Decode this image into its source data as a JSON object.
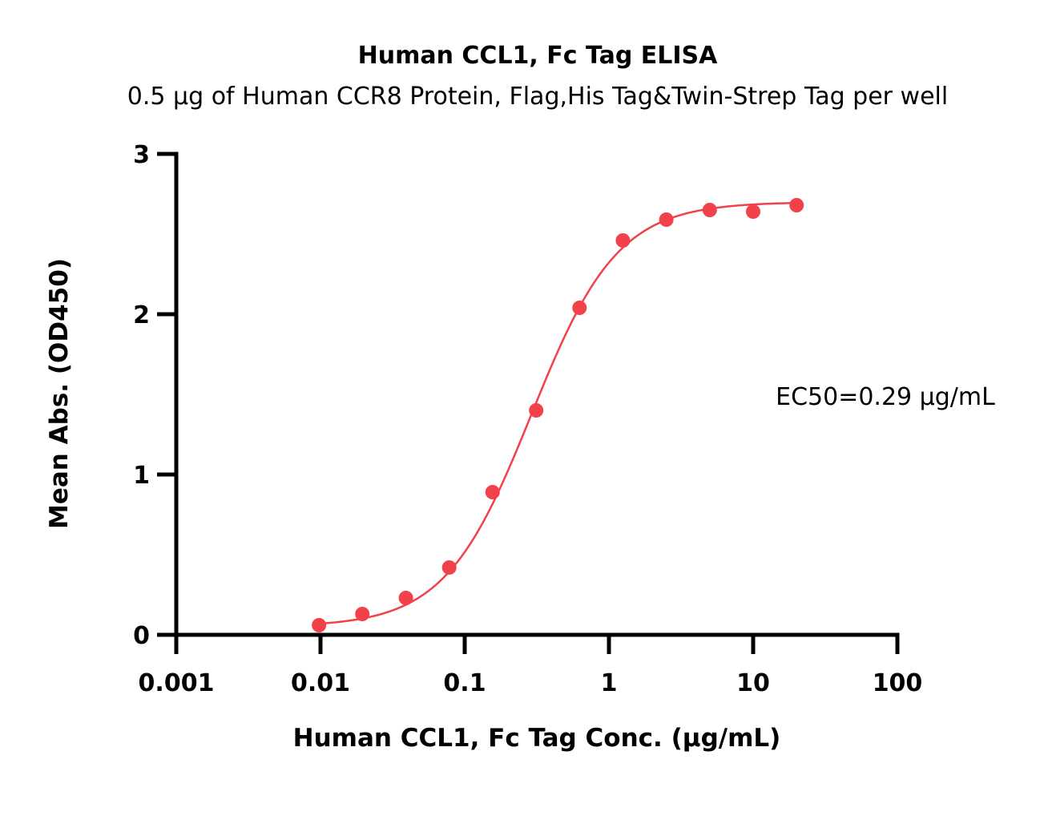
{
  "chart_data": {
    "type": "scatter",
    "title": "Human CCL1, Fc Tag ELISA",
    "subtitle": "0.5 μg of Human CCR8 Protein, Flag,His Tag&Twin-Strep Tag per well",
    "xlabel": "Human CCL1, Fc Tag Conc. (μg/mL)",
    "ylabel": "Mean Abs. (OD450)",
    "xscale": "log",
    "xlim": [
      0.001,
      100
    ],
    "ylim": [
      0,
      3
    ],
    "x_ticks": [
      {
        "value": 0.001,
        "label": "0.001"
      },
      {
        "value": 0.01,
        "label": "0.01"
      },
      {
        "value": 0.1,
        "label": "0.1"
      },
      {
        "value": 1,
        "label": "1"
      },
      {
        "value": 10,
        "label": "10"
      },
      {
        "value": 100,
        "label": "100"
      }
    ],
    "y_ticks": [
      {
        "value": 0,
        "label": "0"
      },
      {
        "value": 1,
        "label": "1"
      },
      {
        "value": 2,
        "label": "2"
      },
      {
        "value": 3,
        "label": "3"
      }
    ],
    "grid": false,
    "series": [
      {
        "color": "#f2414a",
        "x": [
          0.00977,
          0.0195,
          0.0391,
          0.0781,
          0.156,
          0.313,
          0.625,
          1.25,
          2.5,
          5,
          10,
          20
        ],
        "y": [
          0.06,
          0.13,
          0.23,
          0.42,
          0.89,
          1.4,
          2.04,
          2.46,
          2.59,
          2.65,
          2.64,
          2.68
        ]
      }
    ],
    "fit": {
      "type": "4PL",
      "bottom": 0.05,
      "top": 2.7,
      "ec50": 0.29,
      "hill": 1.45,
      "color": "#f2414a"
    },
    "annotations": [
      {
        "text": "EC50=0.29 μg/mL"
      }
    ]
  }
}
